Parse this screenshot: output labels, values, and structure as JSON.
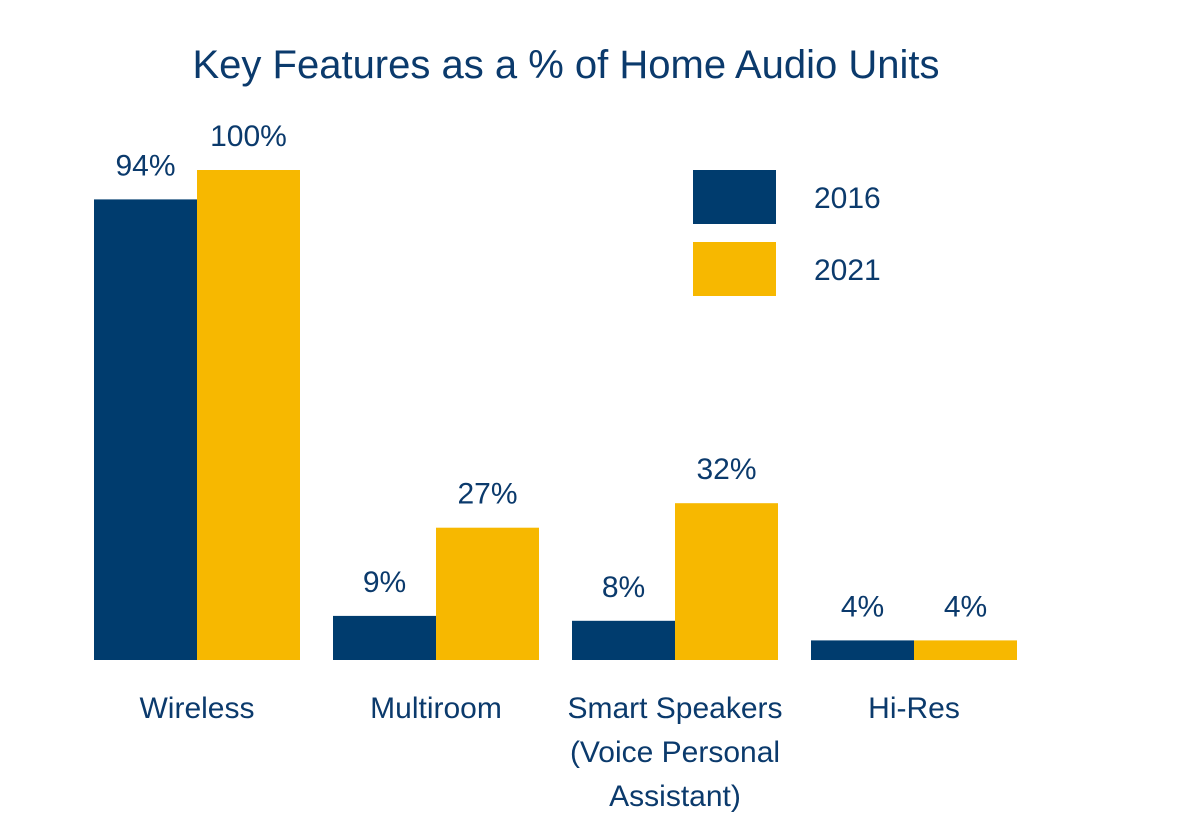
{
  "chart_data": {
    "type": "bar",
    "title": "Key Features as a % of Home Audio Units",
    "categories": [
      [
        "Wireless"
      ],
      [
        "Multiroom"
      ],
      [
        "Smart Speakers",
        "(Voice Personal",
        "Assistant)"
      ],
      [
        "Hi-Res"
      ]
    ],
    "series": [
      {
        "name": "2016",
        "color": "#003c6e",
        "values": [
          94,
          9,
          8,
          4
        ],
        "labels": [
          "94%",
          "9%",
          "8%",
          "4%"
        ]
      },
      {
        "name": "2021",
        "color": "#f7b800",
        "values": [
          100,
          27,
          32,
          4
        ],
        "labels": [
          "100%",
          "27%",
          "32%",
          "4%"
        ]
      }
    ],
    "ylim": [
      0,
      100
    ],
    "grid": false,
    "legend": "top-right",
    "title_color": "#0b3a6c"
  }
}
